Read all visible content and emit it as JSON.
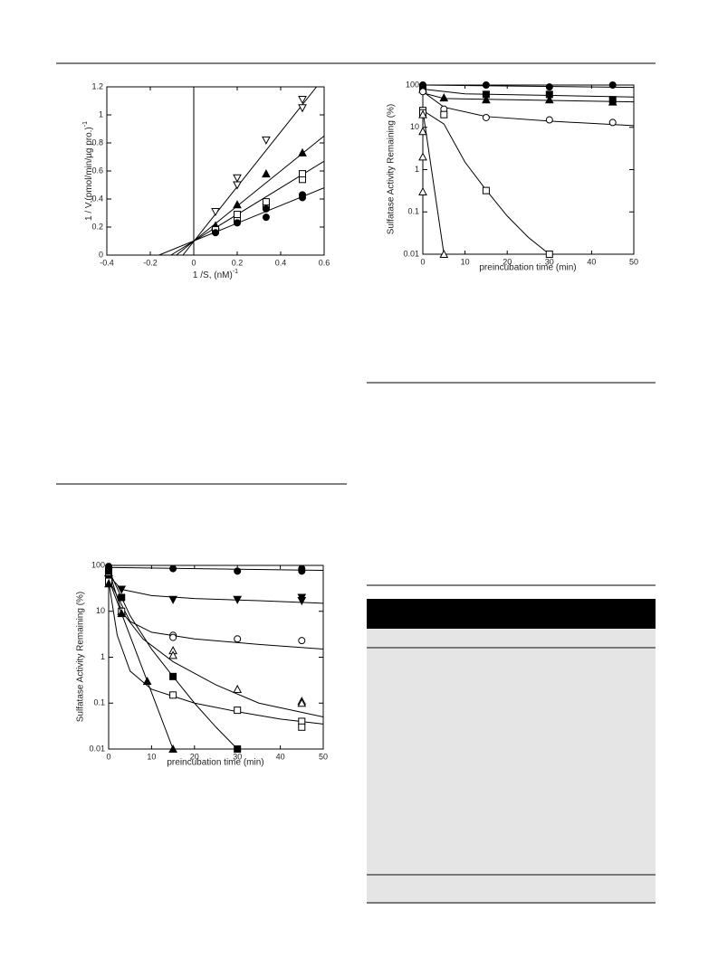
{
  "chart_data": [
    {
      "type": "scatter",
      "yscale": "linear",
      "xlabel": "1 /S, (nM)",
      "xlabel_sup": "-1",
      "ylabel": "1 / V,(pmol/min/µg pro.)",
      "ylabel_sup": "-1",
      "xlim": [
        -0.4,
        0.6
      ],
      "xticks": [
        -0.4,
        -0.2,
        0,
        0.2,
        0.4,
        0.6
      ],
      "ylim": [
        0,
        1.2
      ],
      "yticks": [
        0,
        0.2,
        0.4,
        0.6,
        0.8,
        1,
        1.2
      ],
      "series": [
        {
          "marker": "triangle-down",
          "filled": false,
          "color": "#000000",
          "x": [
            0.1,
            0.2,
            0.2,
            0.333,
            0.5,
            0.5
          ],
          "values": [
            0.31,
            0.5,
            0.55,
            0.82,
            1.05,
            1.11
          ],
          "fit": {
            "x": [
              -0.05,
              0.565
            ],
            "values": [
              0,
              1.2
            ]
          }
        },
        {
          "marker": "triangle",
          "filled": true,
          "color": "#000000",
          "x": [
            0.1,
            0.2,
            0.333,
            0.5
          ],
          "values": [
            0.21,
            0.36,
            0.58,
            0.73
          ],
          "fit": {
            "x": [
              -0.08,
              0.6
            ],
            "values": [
              0,
              0.85
            ]
          }
        },
        {
          "marker": "square",
          "filled": false,
          "color": "#000000",
          "x": [
            0.1,
            0.2,
            0.2,
            0.333,
            0.333,
            0.5,
            0.5
          ],
          "values": [
            0.18,
            0.26,
            0.29,
            0.35,
            0.38,
            0.54,
            0.58
          ],
          "fit": {
            "x": [
              -0.105,
              0.6
            ],
            "values": [
              0,
              0.67
            ]
          }
        },
        {
          "marker": "circle",
          "filled": true,
          "color": "#000000",
          "x": [
            0.1,
            0.2,
            0.333,
            0.333,
            0.5,
            0.5
          ],
          "values": [
            0.16,
            0.23,
            0.27,
            0.33,
            0.41,
            0.43
          ],
          "fit": {
            "x": [
              -0.16,
              0.6
            ],
            "values": [
              0,
              0.48
            ]
          }
        }
      ]
    },
    {
      "type": "scatter",
      "yscale": "log",
      "xlabel": "preincubation time (min)",
      "ylabel": "Sulfatase Activity Remaining (%)",
      "xlim": [
        0,
        50
      ],
      "xticks": [
        0,
        10,
        20,
        30,
        40,
        50
      ],
      "ylim": [
        0.01,
        100
      ],
      "yticks": [
        0.01,
        0.1,
        1,
        10,
        100
      ],
      "series": [
        {
          "marker": "circle",
          "filled": true,
          "color": "#000000",
          "x": [
            0,
            15,
            30,
            45
          ],
          "values": [
            100,
            100,
            90,
            100
          ],
          "fit": {
            "x": [
              0,
              50
            ],
            "values": [
              100,
              88
            ]
          }
        },
        {
          "marker": "square",
          "filled": true,
          "color": "#000000",
          "x": [
            0,
            15,
            30,
            45
          ],
          "values": [
            85,
            60,
            60,
            45
          ],
          "fit": {
            "x": [
              0,
              10,
              50
            ],
            "values": [
              80,
              62,
              52
            ]
          }
        },
        {
          "marker": "triangle",
          "filled": true,
          "color": "#000000",
          "x": [
            0,
            5,
            15,
            30,
            45
          ],
          "values": [
            80,
            50,
            45,
            45,
            40
          ],
          "fit": {
            "x": [
              0,
              5,
              50
            ],
            "values": [
              65,
              48,
              40
            ]
          }
        },
        {
          "marker": "circle",
          "filled": false,
          "color": "#000000",
          "x": [
            0,
            5,
            15,
            30,
            45
          ],
          "values": [
            70,
            27,
            17,
            15,
            13
          ],
          "fit": {
            "x": [
              0,
              5,
              15,
              30,
              50
            ],
            "values": [
              70,
              30,
              18,
              14,
              11
            ]
          }
        },
        {
          "marker": "square",
          "filled": false,
          "color": "#000000",
          "x": [
            0,
            0,
            5,
            15,
            30
          ],
          "values": [
            25,
            22,
            20,
            0.32,
            0.01
          ],
          "fit": {
            "x": [
              0,
              5,
              10,
              15,
              20,
              25,
              30
            ],
            "values": [
              25,
              12,
              1.5,
              0.33,
              0.08,
              0.025,
              0.01
            ]
          }
        },
        {
          "marker": "triangle",
          "filled": false,
          "color": "#000000",
          "x": [
            0,
            0,
            0,
            0,
            5
          ],
          "values": [
            20,
            8,
            2,
            0.3,
            0.01
          ],
          "fit": {
            "x": [
              0,
              5
            ],
            "values": [
              25,
              0.01
            ]
          }
        }
      ]
    },
    {
      "type": "scatter",
      "yscale": "log",
      "xlabel": "preincubation time (min)",
      "ylabel": "Sulfatase Activity Remaining (%)",
      "xlim": [
        0,
        50
      ],
      "xticks": [
        0,
        10,
        20,
        30,
        40,
        50
      ],
      "ylim": [
        0.01,
        100
      ],
      "yticks": [
        0.01,
        0.1,
        1,
        10,
        100
      ],
      "series": [
        {
          "marker": "circle",
          "filled": true,
          "color": "#000000",
          "x": [
            0,
            15,
            30,
            45,
            45
          ],
          "values": [
            95,
            85,
            75,
            85,
            75
          ],
          "fit": {
            "x": [
              0,
              50
            ],
            "values": [
              90,
              78
            ]
          }
        },
        {
          "marker": "triangle-down",
          "filled": true,
          "color": "#000000",
          "x": [
            0,
            3,
            15,
            30,
            45,
            45
          ],
          "values": [
            50,
            30,
            18,
            18,
            20,
            17
          ],
          "fit": {
            "x": [
              0,
              3,
              10,
              20,
              35,
              50
            ],
            "values": [
              60,
              30,
              22,
              19,
              17,
              15
            ]
          }
        },
        {
          "marker": "circle",
          "filled": false,
          "color": "#000000",
          "x": [
            0,
            15,
            15,
            30,
            45
          ],
          "values": [
            40,
            3,
            2.7,
            2.5,
            2.3
          ],
          "fit": {
            "x": [
              0,
              5,
              10,
              20,
              35,
              50
            ],
            "values": [
              50,
              6,
              3.5,
              2.5,
              1.9,
              1.5
            ]
          }
        },
        {
          "marker": "triangle",
          "filled": false,
          "color": "#000000",
          "x": [
            0,
            3,
            15,
            15,
            30,
            45,
            45
          ],
          "values": [
            70,
            10,
            1.4,
            1.1,
            0.2,
            0.11,
            0.1
          ],
          "fit": {
            "x": [
              0,
              3,
              8,
              15,
              25,
              35,
              50
            ],
            "values": [
              80,
              10,
              2.5,
              0.8,
              0.25,
              0.1,
              0.05
            ]
          }
        },
        {
          "marker": "square",
          "filled": true,
          "color": "#000000",
          "x": [
            0,
            3,
            15,
            30
          ],
          "values": [
            75,
            20,
            0.38,
            0.01
          ],
          "fit": {
            "x": [
              0,
              5,
              10,
              15,
              20,
              25,
              30
            ],
            "values": [
              80,
              8,
              1.5,
              0.38,
              0.1,
              0.03,
              0.01
            ]
          }
        },
        {
          "marker": "square",
          "filled": false,
          "color": "#000000",
          "x": [
            0,
            3,
            15,
            30,
            45,
            45
          ],
          "values": [
            45,
            10,
            0.15,
            0.07,
            0.04,
            0.03
          ],
          "fit": {
            "x": [
              0,
              2,
              5,
              10,
              20,
              30,
              40,
              50
            ],
            "values": [
              45,
              3,
              0.5,
              0.2,
              0.1,
              0.065,
              0.045,
              0.035
            ]
          }
        },
        {
          "marker": "triangle",
          "filled": true,
          "color": "#000000",
          "x": [
            0,
            3,
            9,
            15
          ],
          "values": [
            40,
            9,
            0.3,
            0.01
          ],
          "fit": {
            "x": [
              0,
              3,
              9,
              15
            ],
            "values": [
              50,
              9,
              0.3,
              0.01
            ]
          }
        }
      ]
    }
  ]
}
